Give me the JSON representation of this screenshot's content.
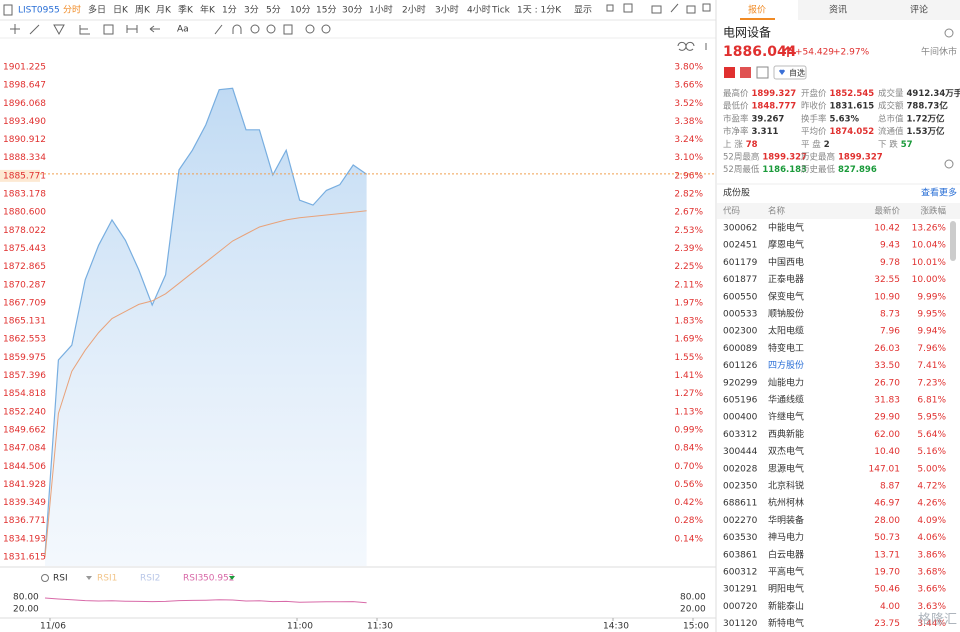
{
  "toolbar": {
    "symbol": "LIST0955",
    "periods": [
      "分时",
      "多日",
      "日K",
      "周K",
      "月K",
      "季K",
      "年K",
      "1分",
      "3分",
      "5分",
      "10分",
      "15分",
      "30分",
      "1小时",
      "2小时",
      "3小时",
      "4小时",
      "Tick",
      "1天 : 1分K",
      "显示"
    ],
    "font_tool": "Aa"
  },
  "chart": {
    "y_ticks": [
      "1901.225",
      "1898.647",
      "1896.068",
      "1893.490",
      "1890.912",
      "1888.334",
      "1885.771",
      "1883.178",
      "1880.600",
      "1878.022",
      "1875.443",
      "1872.865",
      "1870.287",
      "1867.709",
      "1865.131",
      "1862.553",
      "1859.975",
      "1857.396",
      "1854.818",
      "1852.240",
      "1849.662",
      "1847.084",
      "1844.506",
      "1841.928",
      "1839.349",
      "1836.771",
      "1834.193",
      "1831.615"
    ],
    "pct_ticks": [
      "3.80%",
      "3.66%",
      "3.52%",
      "3.38%",
      "3.24%",
      "3.10%",
      "2.96%",
      "2.82%",
      "2.67%",
      "2.53%",
      "2.39%",
      "2.25%",
      "2.11%",
      "1.97%",
      "1.83%",
      "1.69%",
      "1.55%",
      "1.41%",
      "1.27%",
      "1.13%",
      "0.99%",
      "0.84%",
      "0.70%",
      "0.56%",
      "0.42%",
      "0.28%",
      "0.14%"
    ],
    "x_labels": [
      "11/06",
      "11:00",
      "11:30",
      "14:30",
      "15:00"
    ],
    "price": [
      1831.9,
      1859.6,
      1861.7,
      1871.0,
      1875.9,
      1879.5,
      1876.6,
      1872.4,
      1867.4,
      1871.7,
      1886.6,
      1889.4,
      1893.0,
      1898.0,
      1898.2,
      1892.3,
      1892.3,
      1885.9,
      1889.4,
      1882.3,
      1881.6,
      1883.7,
      1884.5,
      1887.3,
      1886.0
    ],
    "avg_price": [
      1831.6,
      1852.0,
      1858.0,
      1861.0,
      1863.5,
      1865.5,
      1866.5,
      1867.5,
      1868.0,
      1869.0,
      1870.5,
      1872.0,
      1873.5,
      1875.0,
      1876.5,
      1877.5,
      1878.5,
      1879.0,
      1879.5,
      1879.8,
      1880.0,
      1880.2,
      1880.4,
      1880.6,
      1880.8
    ],
    "rsi": {
      "label": "RSI",
      "names": [
        "RSI1",
        "RSI2",
        "RSI3"
      ],
      "rsi3_value": 50.952,
      "ticks": [
        "80.00",
        "20.00"
      ],
      "values": [
        75,
        70,
        66,
        62,
        60,
        61,
        59,
        58,
        57,
        58,
        62,
        63,
        64,
        66,
        65,
        60,
        61,
        57,
        58,
        54,
        55,
        56,
        56,
        57,
        51
      ]
    }
  },
  "quote": {
    "tabs": [
      "报价",
      "资讯",
      "评论"
    ],
    "name": "电网设备",
    "price": 1886.044,
    "change": "+54.429",
    "change_pct": "+2.97%",
    "status": "午间休市",
    "watch": "自选",
    "stats": [
      [
        {
          "label": "最高价",
          "value": "1899.327",
          "tone": "up"
        },
        {
          "label": "开盘价",
          "value": "1852.545",
          "tone": "up"
        },
        {
          "label": "成交量",
          "value": "4912.34万手",
          "tone": "flat"
        }
      ],
      [
        {
          "label": "最低价",
          "value": "1848.777",
          "tone": "up"
        },
        {
          "label": "昨收价",
          "value": "1831.615",
          "tone": "flat"
        },
        {
          "label": "成交额",
          "value": "788.73亿",
          "tone": "flat"
        }
      ],
      [
        {
          "label": "市盈率",
          "value": "39.267",
          "tone": "flat"
        },
        {
          "label": "换手率",
          "value": "5.63%",
          "tone": "flat"
        },
        {
          "label": "总市值",
          "value": "1.72万亿",
          "tone": "flat"
        }
      ],
      [
        {
          "label": "市净率",
          "value": "3.311",
          "tone": "flat"
        },
        {
          "label": "平均价",
          "value": "1874.052",
          "tone": "up"
        },
        {
          "label": "流通值",
          "value": "1.53万亿",
          "tone": "flat"
        }
      ],
      [
        {
          "label": "上 涨",
          "value": "78",
          "tone": "up"
        },
        {
          "label": "平 盘",
          "value": "2",
          "tone": "flat"
        },
        {
          "label": "下 跌",
          "value": "57",
          "tone": "down"
        }
      ],
      [
        {
          "label": "52周最高",
          "value": "1899.327",
          "tone": "up"
        },
        {
          "label": "历史最高",
          "value": "1899.327",
          "tone": "up"
        }
      ],
      [
        {
          "label": "52周最低",
          "value": "1186.183",
          "tone": "down"
        },
        {
          "label": "历史最低",
          "value": "827.896",
          "tone": "down"
        }
      ]
    ],
    "constituents": {
      "title": "成份股",
      "more": "查看更多",
      "headers": [
        "代码",
        "名称",
        "最新价",
        "涨跌幅"
      ],
      "rows": [
        [
          "300062",
          "中能电气",
          "10.42",
          "13.26%"
        ],
        [
          "002451",
          "摩恩电气",
          "9.43",
          "10.04%"
        ],
        [
          "601179",
          "中国西电",
          "9.78",
          "10.01%"
        ],
        [
          "601877",
          "正泰电器",
          "32.55",
          "10.00%"
        ],
        [
          "600550",
          "保变电气",
          "10.90",
          "9.99%"
        ],
        [
          "000533",
          "顺钠股份",
          "8.73",
          "9.95%"
        ],
        [
          "002300",
          "太阳电缆",
          "7.96",
          "9.94%"
        ],
        [
          "600089",
          "特变电工",
          "26.03",
          "7.96%"
        ],
        [
          "601126",
          "四方股份",
          "33.50",
          "7.41%"
        ],
        [
          "920299",
          "灿能电力",
          "26.70",
          "7.23%"
        ],
        [
          "605196",
          "华通线缆",
          "31.83",
          "6.81%"
        ],
        [
          "000400",
          "许继电气",
          "29.90",
          "5.95%"
        ],
        [
          "603312",
          "西典新能",
          "62.00",
          "5.64%"
        ],
        [
          "300444",
          "双杰电气",
          "10.40",
          "5.16%"
        ],
        [
          "002028",
          "思源电气",
          "147.01",
          "5.00%"
        ],
        [
          "002350",
          "北京科锐",
          "8.87",
          "4.72%"
        ],
        [
          "688611",
          "杭州柯林",
          "46.97",
          "4.26%"
        ],
        [
          "002270",
          "华明装备",
          "28.00",
          "4.09%"
        ],
        [
          "603530",
          "神马电力",
          "50.73",
          "4.06%"
        ],
        [
          "603861",
          "白云电器",
          "13.71",
          "3.86%"
        ],
        [
          "600312",
          "平高电气",
          "19.70",
          "3.68%"
        ],
        [
          "301291",
          "明阳电气",
          "50.46",
          "3.66%"
        ],
        [
          "000720",
          "新能泰山",
          "4.00",
          "3.63%"
        ],
        [
          "301120",
          "新特电气",
          "23.75",
          "3.44%"
        ]
      ]
    },
    "watermark": "格隆汇"
  }
}
